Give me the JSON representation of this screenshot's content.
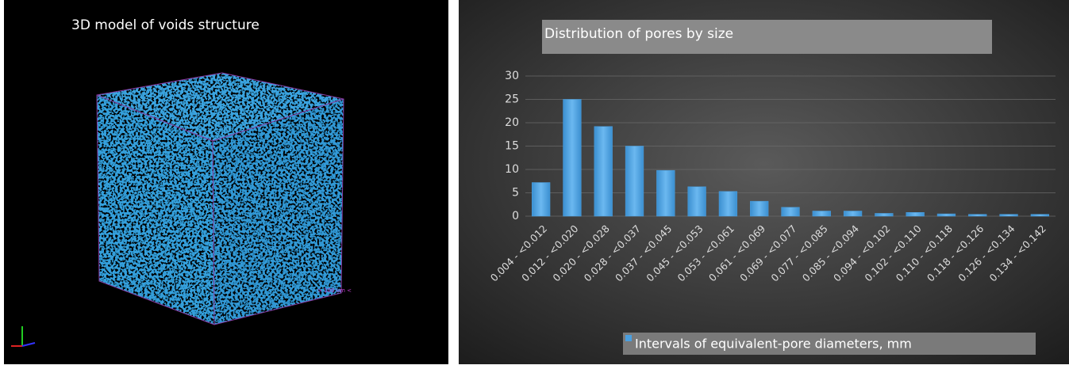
{
  "left_panel": {
    "title": "3D model of voids structure",
    "scale_label": "> 100 um <"
  },
  "chart_data": {
    "type": "bar",
    "title": "Distribution of pores by size",
    "categories": [
      "0.004 - <0.012",
      "0.012 - <0.020",
      "0.020 - <0.028",
      "0.028 - <0.037",
      "0.037 - <0.045",
      "0.045 - <0.053",
      "0.053 - <0.061",
      "0.061 - <0.069",
      "0.069 - <0.077",
      "0.077 - <0.085",
      "0.085 - <0.094",
      "0.094 - <0.102",
      "0.102 - <0.110",
      "0.110 - <0.118",
      "0.118 - <0.126",
      "0.126 - <0.134",
      "0.134 - <0.142"
    ],
    "series": [
      {
        "name": "Intervals of equivalent-pore diameters, mm",
        "color": "#4a9fe0",
        "values": [
          7.2,
          25,
          19.2,
          15,
          9.8,
          6.3,
          5.3,
          3.2,
          1.9,
          1.1,
          1.1,
          0.6,
          0.8,
          0.5,
          0.4,
          0.4,
          0.4
        ]
      }
    ],
    "ylim": [
      0,
      30
    ],
    "yticks": [
      0,
      5,
      10,
      15,
      20,
      25,
      30
    ],
    "grid": true
  }
}
